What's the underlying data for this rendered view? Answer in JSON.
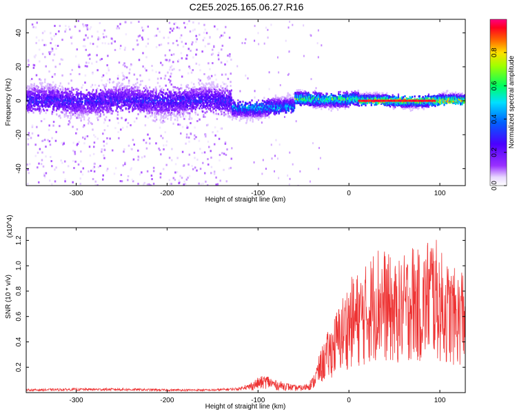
{
  "title": "C2E5.2025.165.06.27.R16",
  "chart_data": [
    {
      "type": "heatmap",
      "title": "C2E5.2025.165.06.27.R16",
      "xlabel": "Height of straight line (km)",
      "ylabel": "Frequency (Hz)",
      "xlim": [
        -355,
        128
      ],
      "ylim": [
        -50,
        48
      ],
      "x_ticks": [
        -300,
        -200,
        -100,
        0,
        100
      ],
      "y_ticks": [
        -40,
        -20,
        0,
        20,
        40
      ],
      "colorbar": {
        "label": "Normalized spectral amplitude",
        "range": [
          0.0,
          1.0
        ],
        "ticks": [
          "0.0",
          "0.2",
          "0.4",
          "0.6",
          "0.8"
        ],
        "colormap": "rainbow (white/lavender → purple → blue → cyan → green → yellow → red → magenta)"
      },
      "features": [
        {
          "x_range": [
            -355,
            -130
          ],
          "frequency_center": 0,
          "band_halfwidth": 10,
          "background": "scattered light purple noise over full frequency range",
          "peak_amplitude": 0.35
        },
        {
          "x_range": [
            -130,
            -60
          ],
          "frequency_center": -4,
          "band_halfwidth": 6,
          "peak_amplitude": 0.55
        },
        {
          "x_range": [
            -60,
            10
          ],
          "frequency_center": 1,
          "band_halfwidth": 5,
          "peak_amplitude": 0.75
        },
        {
          "x_range": [
            10,
            128
          ],
          "frequency_center": 0,
          "band_halfwidth": 4,
          "peak_amplitude": 0.98
        }
      ]
    },
    {
      "type": "line",
      "xlabel": "Height of straight line (km)",
      "ylabel": "SNR (10 * v/v)",
      "y_multiplier": "(x10^4)",
      "xlim": [
        -355,
        128
      ],
      "ylim": [
        0,
        1.3
      ],
      "x_ticks": [
        -300,
        -200,
        -100,
        0,
        100
      ],
      "y_ticks": [
        "0.2",
        "0.4",
        "0.6",
        "0.8",
        "1.0",
        "1.2"
      ],
      "series": [
        {
          "color": "#ee3333",
          "x": [
            -355,
            -300,
            -250,
            -200,
            -150,
            -120,
            -110,
            -100,
            -90,
            -80,
            -70,
            -60,
            -50,
            -40,
            -30,
            -20,
            -10,
            0,
            10,
            20,
            30,
            40,
            50,
            60,
            70,
            80,
            90,
            100,
            110,
            120,
            128
          ],
          "y": [
            0.02,
            0.025,
            0.025,
            0.02,
            0.02,
            0.03,
            0.06,
            0.1,
            0.12,
            0.08,
            0.07,
            0.05,
            0.05,
            0.1,
            0.3,
            0.45,
            0.6,
            0.75,
            0.8,
            0.85,
            1.0,
            0.95,
            0.85,
            0.9,
            1.0,
            0.9,
            1.1,
            0.95,
            0.85,
            0.8,
            0.9
          ]
        }
      ]
    }
  ]
}
